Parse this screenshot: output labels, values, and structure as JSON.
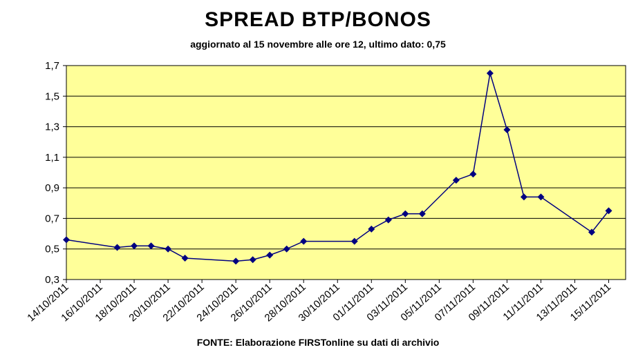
{
  "chart_data": {
    "type": "line",
    "title": "SPREAD BTP/BONOS",
    "subtitle": "aggiornato al 15 novembre alle ore 12, ultimo dato: 0,75",
    "source": "FONTE: Elaborazione FIRSTonline su dati di archivio",
    "xlabel": "",
    "ylabel": "",
    "xlim": [
      "2011-10-14",
      "2011-11-16"
    ],
    "ylim": [
      0.3,
      1.7
    ],
    "y_ticks": [
      "0,3",
      "0,5",
      "0,7",
      "0,9",
      "1,1",
      "1,3",
      "1,5",
      "1,7"
    ],
    "x_ticks": [
      "14/10/2011",
      "16/10/2011",
      "18/10/2011",
      "20/10/2011",
      "22/10/2011",
      "24/10/2011",
      "26/10/2011",
      "28/10/2011",
      "30/10/2011",
      "01/11/2011",
      "03/11/2011",
      "05/11/2011",
      "07/11/2011",
      "09/11/2011",
      "11/11/2011",
      "13/11/2011",
      "15/11/2011"
    ],
    "grid": true,
    "background_color": "#FFFF99",
    "line_color": "#000080",
    "marker": "diamond",
    "x": [
      "2011-10-14",
      "2011-10-17",
      "2011-10-18",
      "2011-10-19",
      "2011-10-20",
      "2011-10-21",
      "2011-10-24",
      "2011-10-25",
      "2011-10-26",
      "2011-10-27",
      "2011-10-28",
      "2011-10-31",
      "2011-11-01",
      "2011-11-02",
      "2011-11-03",
      "2011-11-04",
      "2011-11-06",
      "2011-11-07",
      "2011-11-08",
      "2011-11-09",
      "2011-11-10",
      "2011-11-11",
      "2011-11-14",
      "2011-11-15"
    ],
    "values": [
      0.56,
      0.51,
      0.52,
      0.52,
      0.5,
      0.44,
      0.42,
      0.43,
      0.46,
      0.5,
      0.55,
      0.55,
      0.63,
      0.69,
      0.73,
      0.73,
      0.95,
      0.99,
      1.65,
      1.28,
      0.84,
      0.84,
      0.61,
      0.75
    ]
  }
}
